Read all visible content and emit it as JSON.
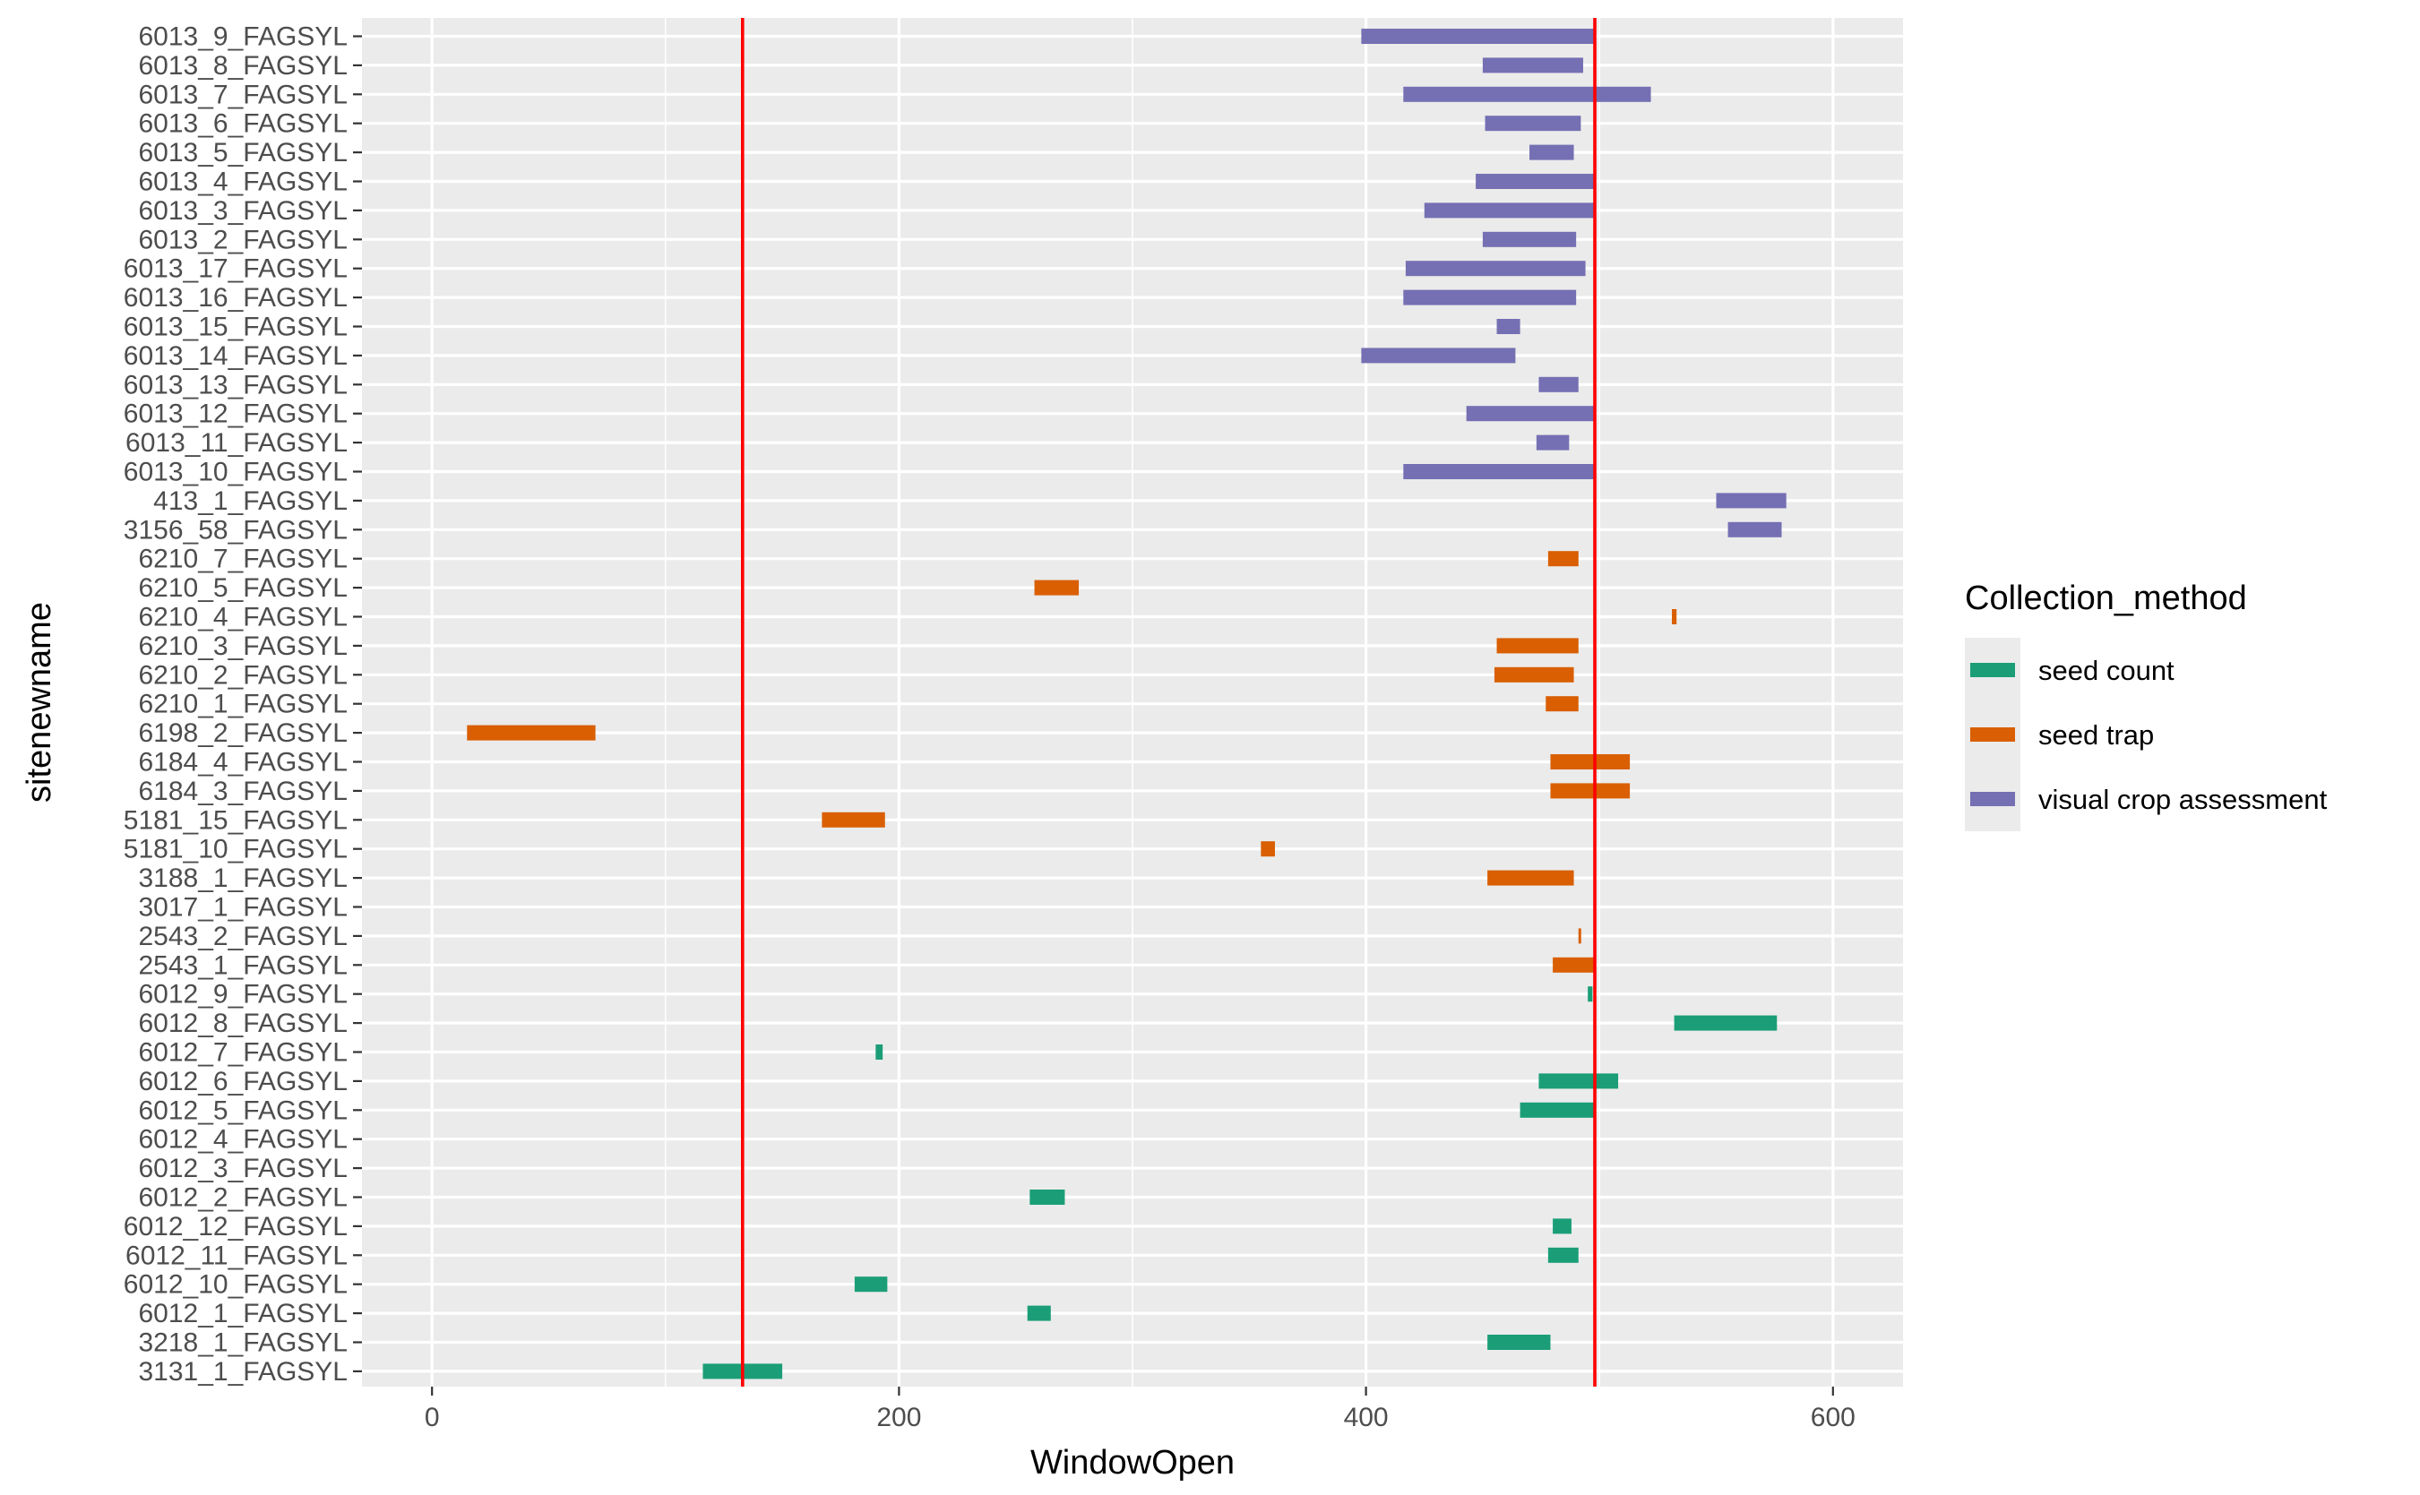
{
  "chart_data": {
    "type": "bar",
    "subtype": "horizontal-range",
    "title": "",
    "xlabel": "WindowOpen",
    "ylabel": "sitenewname",
    "xlim": [
      -30,
      630
    ],
    "x_ticks": [
      0,
      200,
      400,
      600
    ],
    "grid": true,
    "legend_title": "Collection_method",
    "legend_position": "right",
    "categories": [
      "6013_9_FAGSYL",
      "6013_8_FAGSYL",
      "6013_7_FAGSYL",
      "6013_6_FAGSYL",
      "6013_5_FAGSYL",
      "6013_4_FAGSYL",
      "6013_3_FAGSYL",
      "6013_2_FAGSYL",
      "6013_17_FAGSYL",
      "6013_16_FAGSYL",
      "6013_15_FAGSYL",
      "6013_14_FAGSYL",
      "6013_13_FAGSYL",
      "6013_12_FAGSYL",
      "6013_11_FAGSYL",
      "6013_10_FAGSYL",
      "413_1_FAGSYL",
      "3156_58_FAGSYL",
      "6210_7_FAGSYL",
      "6210_5_FAGSYL",
      "6210_4_FAGSYL",
      "6210_3_FAGSYL",
      "6210_2_FAGSYL",
      "6210_1_FAGSYL",
      "6198_2_FAGSYL",
      "6184_4_FAGSYL",
      "6184_3_FAGSYL",
      "5181_15_FAGSYL",
      "5181_10_FAGSYL",
      "3188_1_FAGSYL",
      "3017_1_FAGSYL",
      "2543_2_FAGSYL",
      "2543_1_FAGSYL",
      "6012_9_FAGSYL",
      "6012_8_FAGSYL",
      "6012_7_FAGSYL",
      "6012_6_FAGSYL",
      "6012_5_FAGSYL",
      "6012_4_FAGSYL",
      "6012_3_FAGSYL",
      "6012_2_FAGSYL",
      "6012_12_FAGSYL",
      "6012_11_FAGSYL",
      "6012_10_FAGSYL",
      "6012_1_FAGSYL",
      "3218_1_FAGSYL",
      "3131_1_FAGSYL"
    ],
    "series": [
      {
        "name": "seed count",
        "color": "#1b9e77",
        "ranges": [
          {
            "site": "6012_9_FAGSYL",
            "start": 495,
            "end": 497
          },
          {
            "site": "6012_8_FAGSYL",
            "start": 532,
            "end": 576
          },
          {
            "site": "6012_7_FAGSYL",
            "start": 190,
            "end": 193
          },
          {
            "site": "6012_6_FAGSYL",
            "start": 474,
            "end": 508
          },
          {
            "site": "6012_5_FAGSYL",
            "start": 466,
            "end": 498
          },
          {
            "site": "6012_2_FAGSYL",
            "start": 256,
            "end": 271
          },
          {
            "site": "6012_12_FAGSYL",
            "start": 480,
            "end": 488
          },
          {
            "site": "6012_11_FAGSYL",
            "start": 478,
            "end": 491
          },
          {
            "site": "6012_10_FAGSYL",
            "start": 181,
            "end": 195
          },
          {
            "site": "6012_1_FAGSYL",
            "start": 255,
            "end": 265
          },
          {
            "site": "3218_1_FAGSYL",
            "start": 452,
            "end": 479
          },
          {
            "site": "3131_1_FAGSYL",
            "start": 116,
            "end": 150
          }
        ]
      },
      {
        "name": "seed trap",
        "color": "#d95f02",
        "ranges": [
          {
            "site": "6210_7_FAGSYL",
            "start": 478,
            "end": 491
          },
          {
            "site": "6210_5_FAGSYL",
            "start": 258,
            "end": 277
          },
          {
            "site": "6210_4_FAGSYL",
            "start": 531,
            "end": 533
          },
          {
            "site": "6210_3_FAGSYL",
            "start": 456,
            "end": 491
          },
          {
            "site": "6210_2_FAGSYL",
            "start": 455,
            "end": 489
          },
          {
            "site": "6210_1_FAGSYL",
            "start": 477,
            "end": 491
          },
          {
            "site": "6198_2_FAGSYL",
            "start": 15,
            "end": 70
          },
          {
            "site": "6184_4_FAGSYL",
            "start": 479,
            "end": 513
          },
          {
            "site": "6184_3_FAGSYL",
            "start": 479,
            "end": 513
          },
          {
            "site": "5181_15_FAGSYL",
            "start": 167,
            "end": 194
          },
          {
            "site": "5181_10_FAGSYL",
            "start": 355,
            "end": 361
          },
          {
            "site": "3188_1_FAGSYL",
            "start": 452,
            "end": 489
          },
          {
            "site": "2543_2_FAGSYL",
            "start": 491,
            "end": 492
          },
          {
            "site": "2543_1_FAGSYL",
            "start": 480,
            "end": 498
          }
        ]
      },
      {
        "name": "visual crop assessment",
        "color": "#7570b3",
        "ranges": [
          {
            "site": "6013_9_FAGSYL",
            "start": 398,
            "end": 498
          },
          {
            "site": "6013_8_FAGSYL",
            "start": 450,
            "end": 493
          },
          {
            "site": "6013_7_FAGSYL",
            "start": 416,
            "end": 522
          },
          {
            "site": "6013_6_FAGSYL",
            "start": 451,
            "end": 492
          },
          {
            "site": "6013_5_FAGSYL",
            "start": 470,
            "end": 489
          },
          {
            "site": "6013_4_FAGSYL",
            "start": 447,
            "end": 498
          },
          {
            "site": "6013_3_FAGSYL",
            "start": 425,
            "end": 498
          },
          {
            "site": "6013_2_FAGSYL",
            "start": 450,
            "end": 490
          },
          {
            "site": "6013_17_FAGSYL",
            "start": 417,
            "end": 494
          },
          {
            "site": "6013_16_FAGSYL",
            "start": 416,
            "end": 490
          },
          {
            "site": "6013_15_FAGSYL",
            "start": 456,
            "end": 466
          },
          {
            "site": "6013_14_FAGSYL",
            "start": 398,
            "end": 464
          },
          {
            "site": "6013_13_FAGSYL",
            "start": 474,
            "end": 491
          },
          {
            "site": "6013_12_FAGSYL",
            "start": 443,
            "end": 498
          },
          {
            "site": "6013_11_FAGSYL",
            "start": 473,
            "end": 487
          },
          {
            "site": "6013_10_FAGSYL",
            "start": 416,
            "end": 498
          },
          {
            "site": "413_1_FAGSYL",
            "start": 550,
            "end": 580
          },
          {
            "site": "3156_58_FAGSYL",
            "start": 555,
            "end": 578
          }
        ]
      }
    ],
    "reference_lines": [
      {
        "axis": "x",
        "value": 133,
        "color": "#ff0000"
      },
      {
        "axis": "x",
        "value": 498,
        "color": "#ff0000"
      }
    ]
  }
}
